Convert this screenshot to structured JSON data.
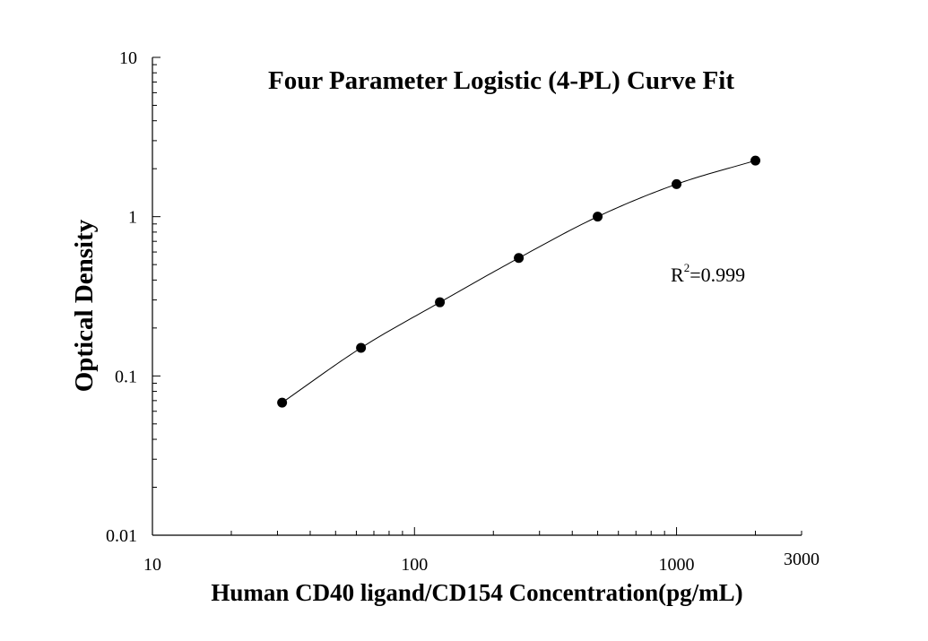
{
  "chart_data": {
    "type": "scatter",
    "title": "Four Parameter Logistic (4-PL) Curve Fit",
    "xlabel": "Human CD40 ligand/CD154 Concentration(pg/mL)",
    "ylabel": "Optical Density",
    "x_scale": "log",
    "y_scale": "log",
    "xlim": [
      10,
      3000
    ],
    "ylim": [
      0.01,
      10
    ],
    "x_ticks": [
      "10",
      "100",
      "1000",
      "3000"
    ],
    "y_ticks": [
      "0.01",
      "0.1",
      "1",
      "10"
    ],
    "x": [
      31.25,
      62.5,
      125,
      250,
      500,
      1000,
      2000
    ],
    "y": [
      0.068,
      0.15,
      0.29,
      0.55,
      1.0,
      1.6,
      2.25
    ],
    "fit": {
      "model": "4-PL",
      "curve": "smooth line through points"
    },
    "annotation": {
      "base": "R",
      "superscript": "2",
      "rest": "=0.999"
    },
    "grid": false,
    "legend": "none"
  }
}
